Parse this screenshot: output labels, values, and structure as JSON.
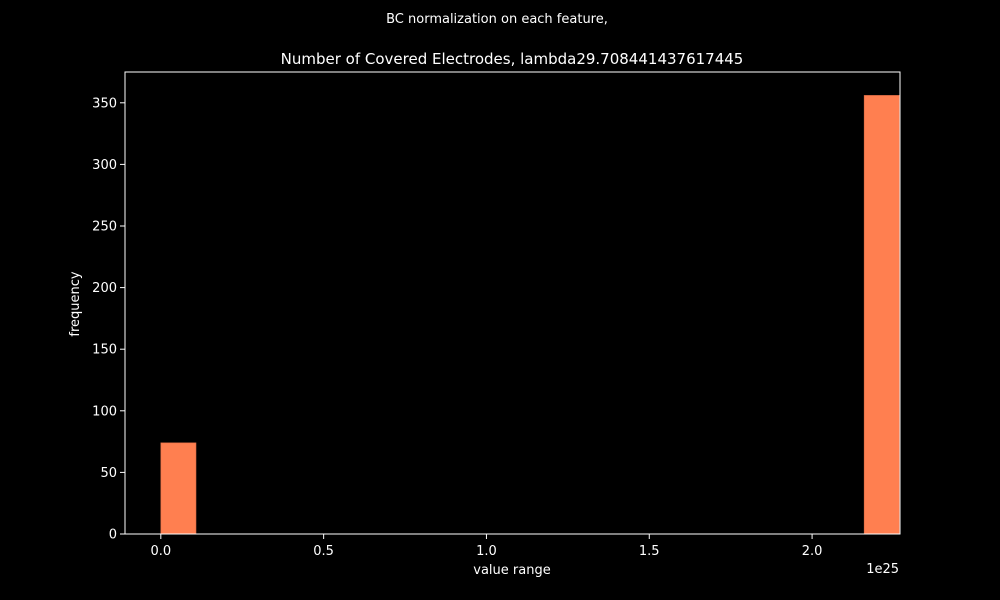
{
  "figure": {
    "suptitle": "BC normalization on each feature,"
  },
  "chart_data": {
    "type": "bar",
    "title": "Number of Covered Electrodes, lambda29.708441437617445",
    "xlabel": "value range",
    "ylabel": "frequency",
    "x_offset_label": "1e25",
    "x_scale": 1e+25,
    "xlim": [
      -0.11,
      2.27
    ],
    "ylim": [
      0,
      375
    ],
    "xticks": [
      0.0,
      0.5,
      1.0,
      1.5,
      2.0
    ],
    "xtick_labels": [
      "0.0",
      "0.5",
      "1.0",
      "1.5",
      "2.0"
    ],
    "yticks": [
      0,
      50,
      100,
      150,
      200,
      250,
      300,
      350
    ],
    "ytick_labels": [
      "0",
      "50",
      "100",
      "150",
      "200",
      "250",
      "300",
      "350"
    ],
    "bins": [
      {
        "x0": 0.0,
        "x1": 0.108,
        "count": 74
      },
      {
        "x0": 2.16,
        "x1": 2.268,
        "count": 356
      }
    ],
    "bar_color": "#ff7f50",
    "background_color": "#000000",
    "foreground_color": "#ffffff",
    "grid": false,
    "legend": "none"
  }
}
